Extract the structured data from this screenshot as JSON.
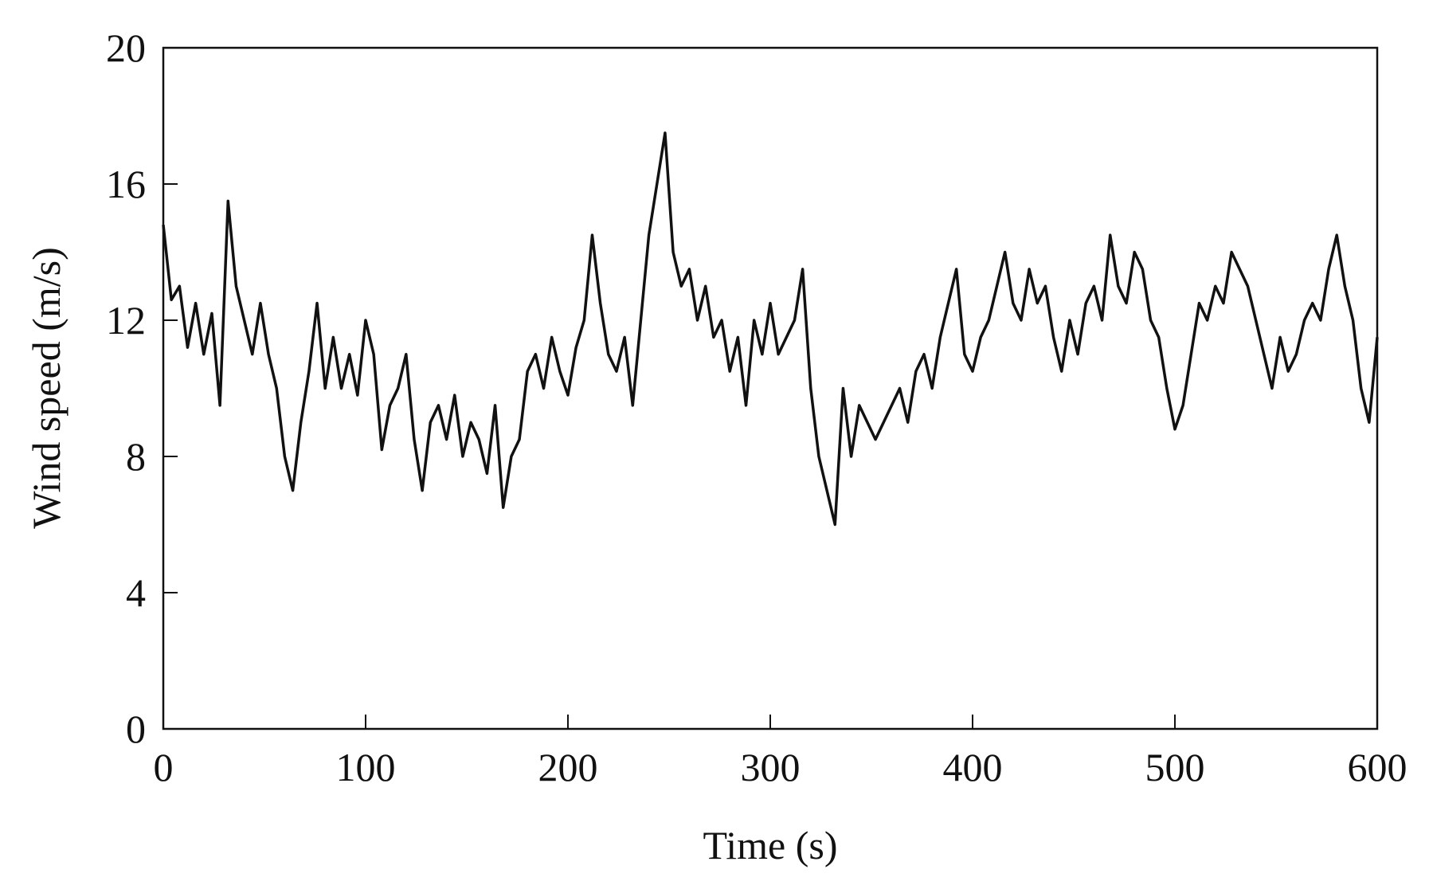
{
  "chart_data": {
    "type": "line",
    "xlabel": "Time (s)",
    "ylabel": "Wind speed (m/s)",
    "x": [
      0,
      4,
      8,
      12,
      16,
      20,
      24,
      28,
      32,
      36,
      40,
      44,
      48,
      52,
      56,
      60,
      64,
      68,
      72,
      76,
      80,
      84,
      88,
      92,
      96,
      100,
      104,
      108,
      112,
      116,
      120,
      124,
      128,
      132,
      136,
      140,
      144,
      148,
      152,
      156,
      160,
      164,
      168,
      172,
      176,
      180,
      184,
      188,
      192,
      196,
      200,
      204,
      208,
      212,
      216,
      220,
      224,
      228,
      232,
      236,
      240,
      244,
      248,
      252,
      256,
      260,
      264,
      268,
      272,
      276,
      280,
      284,
      288,
      292,
      296,
      300,
      304,
      308,
      312,
      316,
      320,
      324,
      328,
      332,
      336,
      340,
      344,
      348,
      352,
      356,
      360,
      364,
      368,
      372,
      376,
      380,
      384,
      388,
      392,
      396,
      400,
      404,
      408,
      412,
      416,
      420,
      424,
      428,
      432,
      436,
      440,
      444,
      448,
      452,
      456,
      460,
      464,
      468,
      472,
      476,
      480,
      484,
      488,
      492,
      496,
      500,
      504,
      508,
      512,
      516,
      520,
      524,
      528,
      532,
      536,
      540,
      544,
      548,
      552,
      556,
      560,
      564,
      568,
      572,
      576,
      580,
      584,
      588,
      592,
      596,
      600
    ],
    "values": [
      14.8,
      12.6,
      13.0,
      11.2,
      12.5,
      11.0,
      12.2,
      9.5,
      15.5,
      13.0,
      12.0,
      11.0,
      12.5,
      11.0,
      10.0,
      8.0,
      7.0,
      9.0,
      10.5,
      12.5,
      10.0,
      11.5,
      10.0,
      11.0,
      9.8,
      12.0,
      11.0,
      8.2,
      9.5,
      10.0,
      11.0,
      8.5,
      7.0,
      9.0,
      9.5,
      8.5,
      9.8,
      8.0,
      9.0,
      8.5,
      7.5,
      9.5,
      6.5,
      8.0,
      8.5,
      10.5,
      11.0,
      10.0,
      11.5,
      10.5,
      9.8,
      11.2,
      12.0,
      14.5,
      12.5,
      11.0,
      10.5,
      11.5,
      9.5,
      12.0,
      14.5,
      16.0,
      17.5,
      14.0,
      13.0,
      13.5,
      12.0,
      13.0,
      11.5,
      12.0,
      10.5,
      11.5,
      9.5,
      12.0,
      11.0,
      12.5,
      11.0,
      11.5,
      12.0,
      13.5,
      10.0,
      8.0,
      7.0,
      6.0,
      10.0,
      8.0,
      9.5,
      9.0,
      8.5,
      9.0,
      9.5,
      10.0,
      9.0,
      10.5,
      11.0,
      10.0,
      11.5,
      12.5,
      13.5,
      11.0,
      10.5,
      11.5,
      12.0,
      13.0,
      14.0,
      12.5,
      12.0,
      13.5,
      12.5,
      13.0,
      11.5,
      10.5,
      12.0,
      11.0,
      12.5,
      13.0,
      12.0,
      14.5,
      13.0,
      12.5,
      14.0,
      13.5,
      12.0,
      11.5,
      10.0,
      8.8,
      9.5,
      11.0,
      12.5,
      12.0,
      13.0,
      12.5,
      14.0,
      13.5,
      13.0,
      12.0,
      11.0,
      10.0,
      11.5,
      10.5,
      11.0,
      12.0,
      12.5,
      12.0,
      13.5,
      14.5,
      13.0,
      12.0,
      10.0,
      9.0,
      11.5
    ],
    "color": "#111111",
    "xlim": [
      0,
      600
    ],
    "xticks": [
      0,
      100,
      200,
      300,
      400,
      500,
      600
    ],
    "ylim": [
      0,
      20
    ],
    "yticks": [
      0,
      4,
      8,
      12,
      16,
      20
    ]
  }
}
